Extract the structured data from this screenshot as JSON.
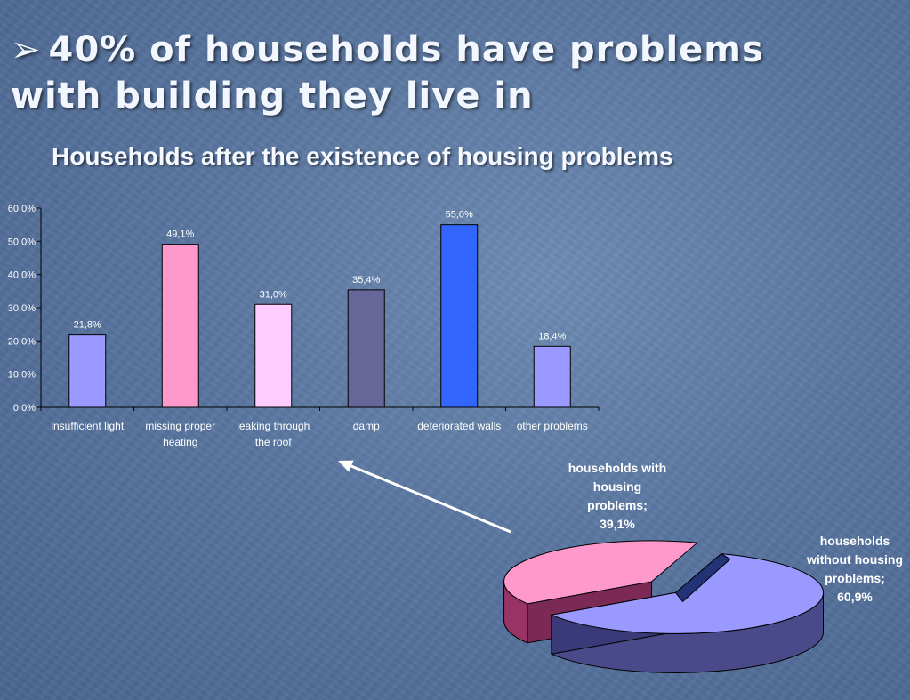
{
  "headline": {
    "bullet": "➢",
    "line1": "40% of households have problems",
    "line2": "with building they live in"
  },
  "chart_data": [
    {
      "type": "bar",
      "title": "Households after the existence of housing problems",
      "categories": [
        "insufficient light",
        "missing proper heating",
        "leaking through the roof",
        "damp",
        "deteriorated walls",
        "other problems"
      ],
      "category_lines": [
        [
          "insufficient light"
        ],
        [
          "missing proper",
          "heating"
        ],
        [
          "leaking through",
          "the roof"
        ],
        [
          "damp"
        ],
        [
          "deteriorated walls"
        ],
        [
          "other problems"
        ]
      ],
      "values": [
        21.8,
        49.1,
        31.0,
        35.4,
        55.0,
        18.4
      ],
      "data_labels": [
        "21,8%",
        "49,1%",
        "31,0%",
        "35,4%",
        "55,0%",
        "18,4%"
      ],
      "bar_colors": [
        "#9999ff",
        "#ff99cc",
        "#ffccff",
        "#666699",
        "#3366ff",
        "#9999ff"
      ],
      "ylim": [
        0,
        60
      ],
      "yticks": [
        "0,0%",
        "10,0%",
        "20,0%",
        "30,0%",
        "40,0%",
        "50,0%",
        "60,0%"
      ],
      "grid": false,
      "xlabel": "",
      "ylabel": ""
    },
    {
      "type": "pie",
      "labels": [
        "households with housing problems",
        "households without housing problems"
      ],
      "values": [
        39.1,
        60.9
      ],
      "label_lines": [
        [
          "households with",
          "housing",
          "problems;",
          "39,1%"
        ],
        [
          "households",
          "without housing",
          "problems;",
          "60,9%"
        ]
      ],
      "colors": [
        "#ff99cc",
        "#9999ff"
      ],
      "side_colors": [
        "#993366",
        "#4a4a8a"
      ]
    }
  ]
}
